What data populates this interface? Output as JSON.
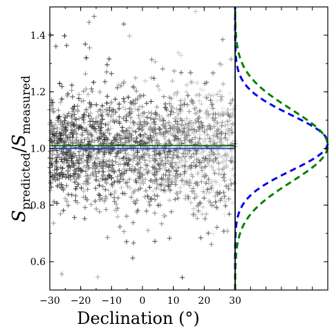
{
  "chart_data": [
    {
      "type": "scatter",
      "xlabel": "Declination (°)",
      "ylabel_main": "S",
      "ylabel_sub1": "predicted",
      "ylabel_slash": "/",
      "ylabel_sub2": "measured",
      "xlim": [
        -30,
        30
      ],
      "ylim": [
        0.5,
        1.5
      ],
      "xticks": [
        -30,
        -20,
        -10,
        0,
        10,
        20,
        30
      ],
      "xtick_labels": [
        "−30",
        "−20",
        "−10",
        "0",
        "10",
        "20",
        "30"
      ],
      "yticks": [
        0.6,
        0.8,
        1.0,
        1.2,
        1.4
      ],
      "ytick_labels": [
        "0.6",
        "0.8",
        "1.0",
        "1.2",
        "1.4"
      ],
      "scatter": {
        "marker": "plus",
        "n_points": 1900,
        "center_y": 1.0,
        "spread_y": 0.1,
        "seed": 12345
      },
      "lines": [
        {
          "y": 1.01,
          "color": "#006400"
        },
        {
          "y": 1.0,
          "color": "#1f3fbf"
        }
      ],
      "grid": false
    },
    {
      "type": "line",
      "orientation": "horizontal-density",
      "ylim": [
        0.5,
        1.5
      ],
      "series": [
        {
          "mean": 1.02,
          "sigma": 0.098,
          "color": "#0000ee",
          "style": "dashed"
        },
        {
          "mean": 1.01,
          "sigma": 0.128,
          "color": "#008000",
          "style": "dashed"
        }
      ],
      "grid": false
    }
  ]
}
